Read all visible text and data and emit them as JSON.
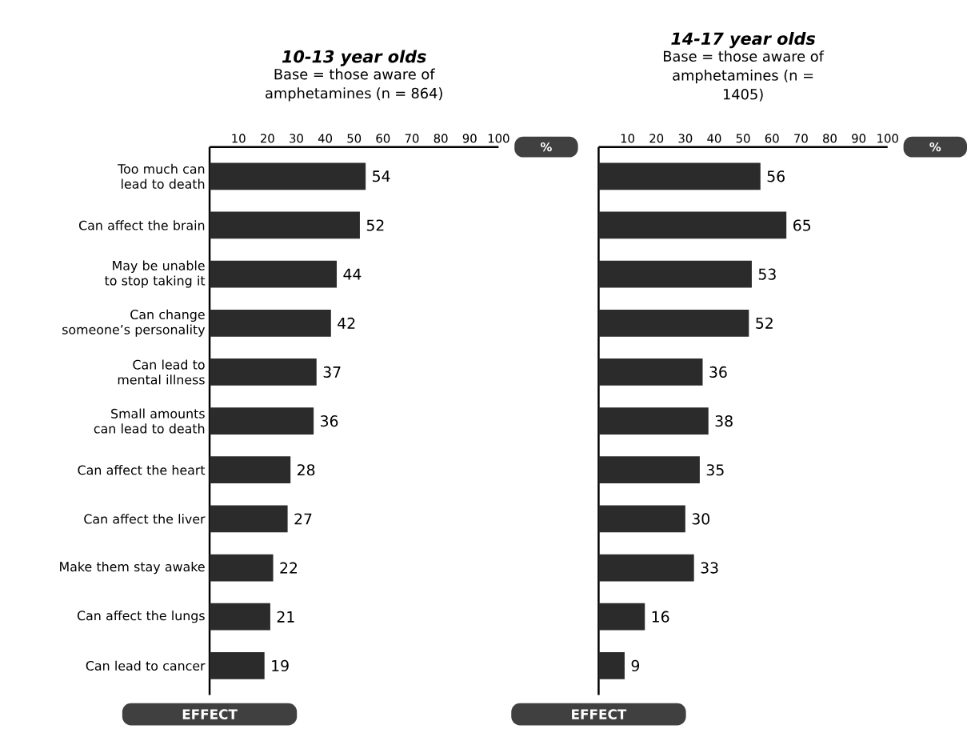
{
  "chart_data": [
    {
      "type": "bar",
      "orientation": "horizontal",
      "title": "*10-13 year olds*",
      "subtitle": "Base = those aware of amphetamines (n = 864)",
      "xlabel": "%",
      "ylabel": "EFFECT",
      "categories": [
        "Too much can lead to death",
        "Can affect the brain",
        "May be unable to stop taking it",
        "Can change someone’s personality",
        "Can lead to mental illness",
        "Small amounts can lead to death",
        "Can affect the heart",
        "Can affect the liver",
        "Make them stay awake",
        "Can affect the lungs",
        "Can lead to cancer"
      ],
      "values": [
        54,
        52,
        44,
        42,
        37,
        36,
        28,
        27,
        22,
        21,
        19
      ],
      "color": "#2b2b2b",
      "xlim": [
        0,
        100
      ],
      "xticks": [
        10,
        20,
        30,
        40,
        50,
        60,
        70,
        80,
        90,
        100
      ],
      "data_labels": true
    },
    {
      "type": "bar",
      "orientation": "horizontal",
      "title": "*14-17 year olds*",
      "subtitle": "Base = those aware of amphetamines (n = 1405)",
      "xlabel": "%",
      "ylabel": "EFFECT",
      "categories": [
        null,
        null,
        null,
        null,
        null,
        null,
        null,
        null,
        null,
        null,
        null
      ],
      "values": [
        56,
        65,
        53,
        52,
        36,
        38,
        35,
        30,
        33,
        16,
        9
      ],
      "color": "#2b2b2b",
      "xlim": [
        0,
        100
      ],
      "xticks": [
        10,
        20,
        30,
        40,
        50,
        60,
        70,
        80,
        90,
        100
      ],
      "data_labels": true
    }
  ]
}
